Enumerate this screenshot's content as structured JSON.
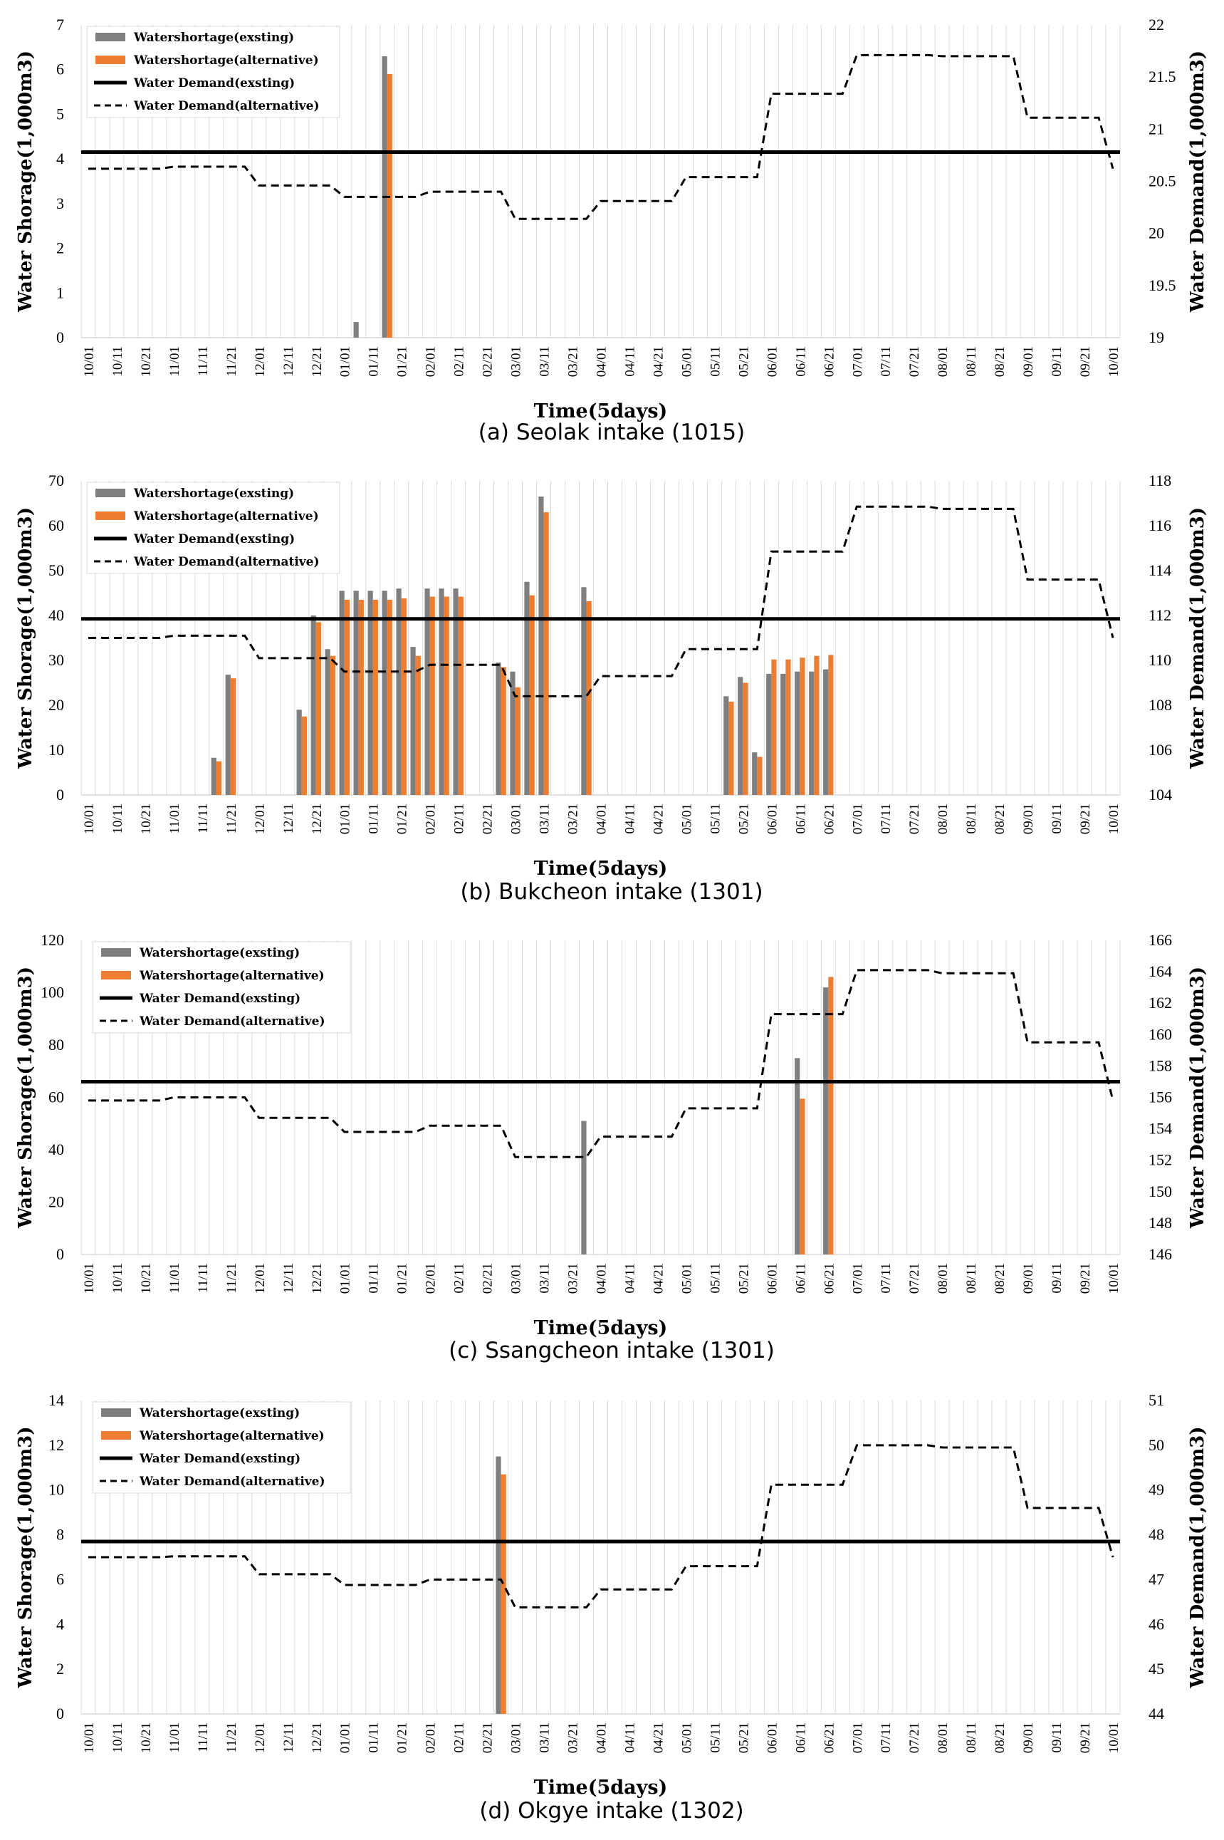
{
  "figure": {
    "colors": {
      "existing": "#7f7f7f",
      "alternative": "#ed7d31",
      "demand": "#000000",
      "grid": "#d9d9d9"
    },
    "x_categories": [
      "10/01",
      "10/11",
      "10/21",
      "11/01",
      "11/11",
      "11/21",
      "12/01",
      "12/11",
      "12/21",
      "01/01",
      "01/11",
      "01/21",
      "02/01",
      "02/11",
      "02/21",
      "03/01",
      "03/11",
      "03/21",
      "04/01",
      "04/11",
      "04/21",
      "05/01",
      "05/11",
      "05/21",
      "06/01",
      "06/11",
      "06/21",
      "07/01",
      "07/11",
      "07/21",
      "08/01",
      "08/11",
      "08/21",
      "09/01",
      "09/11",
      "09/21",
      "10/01"
    ],
    "pentads_per_label": 2,
    "total_pentads": 73
  },
  "chart_data": [
    {
      "type": "bar",
      "caption": "(a) Seolak intake (1015)",
      "xlabel": "Time(5days)",
      "ylabel_left": "Water Shorage(1,000m3)",
      "ylabel_right": "Water Demand(1,000m3)",
      "legend": [
        "Watershortage(exsting)",
        "Watershortage(alternative)",
        "Water Demand(exsting)",
        "Water Demand(alternative)"
      ],
      "ylim_left": [
        0,
        7
      ],
      "yticks_left": [
        0,
        1,
        2,
        3,
        4,
        5,
        6,
        7
      ],
      "ylim_right": [
        19,
        22
      ],
      "yticks_right": [
        "19",
        "19.5",
        "20",
        "20.5",
        "21",
        "21.5",
        "22"
      ],
      "shortage_existing": {
        "19": 0.35,
        "21": 6.3
      },
      "shortage_alternative": {
        "21": 5.9
      },
      "demand_existing": 20.78,
      "demand_alternative": [
        20.62,
        20.62,
        20.62,
        20.62,
        20.62,
        20.62,
        20.64,
        20.64,
        20.64,
        20.64,
        20.64,
        20.64,
        20.46,
        20.46,
        20.46,
        20.46,
        20.46,
        20.46,
        20.35,
        20.35,
        20.35,
        20.35,
        20.35,
        20.35,
        20.4,
        20.4,
        20.4,
        20.4,
        20.4,
        20.4,
        20.14,
        20.14,
        20.14,
        20.14,
        20.14,
        20.14,
        20.31,
        20.31,
        20.31,
        20.31,
        20.31,
        20.31,
        20.54,
        20.54,
        20.54,
        20.54,
        20.54,
        20.54,
        21.34,
        21.34,
        21.34,
        21.34,
        21.34,
        21.34,
        21.71,
        21.71,
        21.71,
        21.71,
        21.71,
        21.71,
        21.7,
        21.7,
        21.7,
        21.7,
        21.7,
        21.7,
        21.11,
        21.11,
        21.11,
        21.11,
        21.11,
        21.11,
        20.62
      ]
    },
    {
      "type": "bar",
      "caption": "(b) Bukcheon intake (1301)",
      "xlabel": "Time(5days)",
      "ylabel_left": "Water Shorage(1,000m3)",
      "ylabel_right": "Water Demand(1,000m3)",
      "legend": [
        "Watershortage(exsting)",
        "Watershortage(alternative)",
        "Water Demand(exsting)",
        "Water Demand(alternative)"
      ],
      "ylim_left": [
        0,
        70
      ],
      "yticks_left": [
        0,
        10,
        20,
        30,
        40,
        50,
        60,
        70
      ],
      "ylim_right": [
        104,
        118
      ],
      "yticks_right": [
        "104",
        "106",
        "108",
        "110",
        "112",
        "114",
        "116",
        "118"
      ],
      "shortage_existing": {
        "9": 8.3,
        "10": 26.8,
        "15": 19.0,
        "16": 40.0,
        "17": 32.5,
        "18": 45.5,
        "19": 45.5,
        "20": 45.5,
        "21": 45.5,
        "22": 46.0,
        "23": 33.0,
        "24": 46.0,
        "25": 46.0,
        "26": 46.0,
        "29": 29.5,
        "30": 27.5,
        "31": 47.5,
        "32": 66.5,
        "35": 46.3,
        "45": 22.0,
        "46": 26.3,
        "47": 9.5,
        "48": 27.0,
        "49": 27.0,
        "50": 27.5,
        "51": 27.5,
        "52": 28.0
      },
      "shortage_alternative": {
        "9": 7.5,
        "10": 26.0,
        "15": 17.5,
        "16": 38.5,
        "17": 31.0,
        "18": 43.5,
        "19": 43.5,
        "20": 43.5,
        "21": 43.5,
        "22": 43.8,
        "23": 31.0,
        "24": 44.2,
        "25": 44.2,
        "26": 44.2,
        "29": 28.5,
        "30": 24.0,
        "31": 44.5,
        "32": 63.0,
        "35": 43.2,
        "45": 20.8,
        "46": 25.0,
        "47": 8.5,
        "48": 30.2,
        "49": 30.2,
        "50": 30.6,
        "51": 31.0,
        "52": 31.2
      },
      "demand_existing": 111.85,
      "demand_alternative": [
        111.0,
        111.0,
        111.0,
        111.0,
        111.0,
        111.0,
        111.1,
        111.1,
        111.1,
        111.1,
        111.1,
        111.1,
        110.1,
        110.1,
        110.1,
        110.1,
        110.1,
        110.1,
        109.5,
        109.5,
        109.5,
        109.5,
        109.5,
        109.5,
        109.8,
        109.8,
        109.8,
        109.8,
        109.8,
        109.8,
        108.4,
        108.4,
        108.4,
        108.4,
        108.4,
        108.4,
        109.3,
        109.3,
        109.3,
        109.3,
        109.3,
        109.3,
        110.5,
        110.5,
        110.5,
        110.5,
        110.5,
        110.5,
        114.85,
        114.85,
        114.85,
        114.85,
        114.85,
        114.85,
        116.85,
        116.85,
        116.85,
        116.85,
        116.85,
        116.85,
        116.75,
        116.75,
        116.75,
        116.75,
        116.75,
        116.75,
        113.6,
        113.6,
        113.6,
        113.6,
        113.6,
        113.6,
        111.0
      ]
    },
    {
      "type": "bar",
      "caption": "(c) Ssangcheon intake (1301)",
      "xlabel": "Time(5days)",
      "ylabel_left": "Water Shorage(1,000m3)",
      "ylabel_right": "Water Demand(1,000m3)",
      "legend": [
        "Watershortage(exsting)",
        "Watershortage(alternative)",
        "Water Demand(exsting)",
        "Water Demand(alternative)"
      ],
      "ylim_left": [
        0,
        120
      ],
      "yticks_left": [
        0,
        20,
        40,
        60,
        80,
        100,
        120
      ],
      "ylim_right": [
        146,
        166
      ],
      "yticks_right": [
        "146",
        "148",
        "150",
        "152",
        "154",
        "156",
        "158",
        "160",
        "162",
        "164",
        "166"
      ],
      "shortage_existing": {
        "35": 51.0,
        "50": 75.0,
        "52": 102.0
      },
      "shortage_alternative": {
        "50": 59.5,
        "52": 106.0
      },
      "demand_existing": 157.0,
      "demand_alternative": [
        155.8,
        155.8,
        155.8,
        155.8,
        155.8,
        155.8,
        156.0,
        156.0,
        156.0,
        156.0,
        156.0,
        156.0,
        154.7,
        154.7,
        154.7,
        154.7,
        154.7,
        154.7,
        153.8,
        153.8,
        153.8,
        153.8,
        153.8,
        153.8,
        154.2,
        154.2,
        154.2,
        154.2,
        154.2,
        154.2,
        152.2,
        152.2,
        152.2,
        152.2,
        152.2,
        152.2,
        153.5,
        153.5,
        153.5,
        153.5,
        153.5,
        153.5,
        155.3,
        155.3,
        155.3,
        155.3,
        155.3,
        155.3,
        161.3,
        161.3,
        161.3,
        161.3,
        161.3,
        161.3,
        164.1,
        164.1,
        164.1,
        164.1,
        164.1,
        164.1,
        163.9,
        163.9,
        163.9,
        163.9,
        163.9,
        163.9,
        159.5,
        159.5,
        159.5,
        159.5,
        159.5,
        159.5,
        155.8
      ]
    },
    {
      "type": "bar",
      "caption": "(d) Okgye intake (1302)",
      "xlabel": "Time(5days)",
      "ylabel_left": "Water Shorage(1,000m3)",
      "ylabel_right": "Water Demand(1,000m3)",
      "legend": [
        "Watershortage(exsting)",
        "Watershortage(alternative)",
        "Water Demand(exsting)",
        "Water Demand(alternative)"
      ],
      "ylim_left": [
        0,
        14
      ],
      "yticks_left": [
        0,
        2,
        4,
        6,
        8,
        10,
        12,
        14
      ],
      "ylim_right": [
        44,
        51
      ],
      "yticks_right": [
        "44",
        "45",
        "46",
        "47",
        "48",
        "49",
        "50",
        "51"
      ],
      "shortage_existing": {
        "29": 11.5
      },
      "shortage_alternative": {
        "29": 10.7
      },
      "demand_existing": 47.85,
      "demand_alternative": [
        47.5,
        47.5,
        47.5,
        47.5,
        47.5,
        47.5,
        47.52,
        47.52,
        47.52,
        47.52,
        47.52,
        47.52,
        47.12,
        47.12,
        47.12,
        47.12,
        47.12,
        47.12,
        46.88,
        46.88,
        46.88,
        46.88,
        46.88,
        46.88,
        47.0,
        47.0,
        47.0,
        47.0,
        47.0,
        47.0,
        46.38,
        46.38,
        46.38,
        46.38,
        46.38,
        46.38,
        46.78,
        46.78,
        46.78,
        46.78,
        46.78,
        46.78,
        47.3,
        47.3,
        47.3,
        47.3,
        47.3,
        47.3,
        49.12,
        49.12,
        49.12,
        49.12,
        49.12,
        49.12,
        50.0,
        50.0,
        50.0,
        50.0,
        50.0,
        50.0,
        49.95,
        49.95,
        49.95,
        49.95,
        49.95,
        49.95,
        48.6,
        48.6,
        48.6,
        48.6,
        48.6,
        48.6,
        47.5
      ]
    }
  ]
}
